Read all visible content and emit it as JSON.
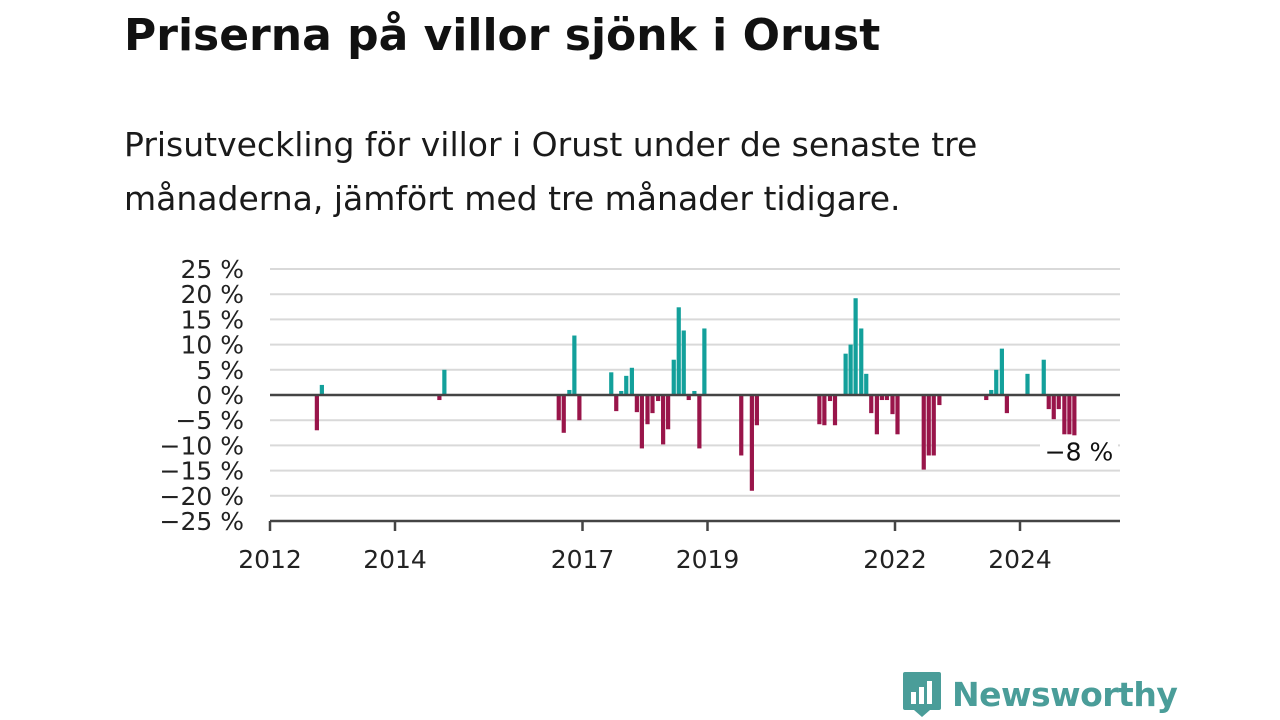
{
  "title": "Priserna på villor sjönk i Orust",
  "subtitle": "Prisutveckling för villor i Orust under de senaste tre månaderna, jämfört med tre månader tidigare.",
  "brand": {
    "name": "Newsworthy",
    "logo_icon": "newsworthy-logo-icon",
    "color": "#4a9d99"
  },
  "colors": {
    "positive": "#13a09b",
    "negative": "#99154a",
    "zero_line": "#444444",
    "grid": "#d9d9d9"
  },
  "chart_data": {
    "type": "bar",
    "unit": "%",
    "ylim": [
      -25,
      25
    ],
    "xlim": [
      2012.0,
      2025.6
    ],
    "y_ticks": [
      25,
      20,
      15,
      10,
      5,
      0,
      -5,
      -10,
      -15,
      -20,
      -25
    ],
    "y_tick_labels": [
      "25 %",
      "20 %",
      "15 %",
      "10 %",
      "5 %",
      "0 %",
      "−5 %",
      "−10 %",
      "−15 %",
      "−20 %",
      "−25 %"
    ],
    "x_ticks": [
      2012,
      2014,
      2017,
      2019,
      2022,
      2024
    ],
    "x_tick_labels": [
      "2012",
      "2014",
      "2017",
      "2019",
      "2022",
      "2024"
    ],
    "grid": true,
    "last_value_label": "−8 %",
    "x": [
      2012.75,
      2012.83,
      2014.71,
      2014.79,
      2016.62,
      2016.7,
      2016.79,
      2016.87,
      2016.95,
      2017.46,
      2017.54,
      2017.62,
      2017.7,
      2017.79,
      2017.87,
      2017.95,
      2018.04,
      2018.12,
      2018.21,
      2018.29,
      2018.37,
      2018.46,
      2018.54,
      2018.62,
      2018.7,
      2018.79,
      2018.87,
      2018.95,
      2019.54,
      2019.71,
      2019.79,
      2020.79,
      2020.87,
      2020.96,
      2021.04,
      2021.21,
      2021.29,
      2021.37,
      2021.46,
      2021.54,
      2021.62,
      2021.71,
      2021.79,
      2021.87,
      2021.96,
      2022.04,
      2022.46,
      2022.54,
      2022.62,
      2022.71,
      2023.46,
      2023.54,
      2023.62,
      2023.71,
      2023.79,
      2024.12,
      2024.38,
      2024.46,
      2024.54,
      2024.62,
      2024.71,
      2024.79,
      2024.87
    ],
    "values": [
      -7,
      2,
      -1,
      5,
      -5,
      -7.5,
      1,
      11.8,
      -5,
      4.5,
      -3.2,
      0.8,
      3.8,
      5.4,
      -3.4,
      -10.6,
      -5.8,
      -3.6,
      -1.2,
      -9.8,
      -6.8,
      7,
      17.4,
      12.8,
      -1,
      0.8,
      -10.6,
      13.2,
      -12,
      -19,
      -6,
      -5.8,
      -6,
      -1.2,
      -6,
      8.2,
      10,
      19.2,
      13.2,
      4.2,
      -3.6,
      -7.8,
      -1,
      -1,
      -3.8,
      -7.8,
      -14.8,
      -12,
      -12,
      -2,
      -1,
      1,
      5,
      9.2,
      -3.6,
      4.2,
      7,
      -2.8,
      -4.8,
      -2.8,
      -7.8,
      -7.8,
      -8
    ]
  }
}
